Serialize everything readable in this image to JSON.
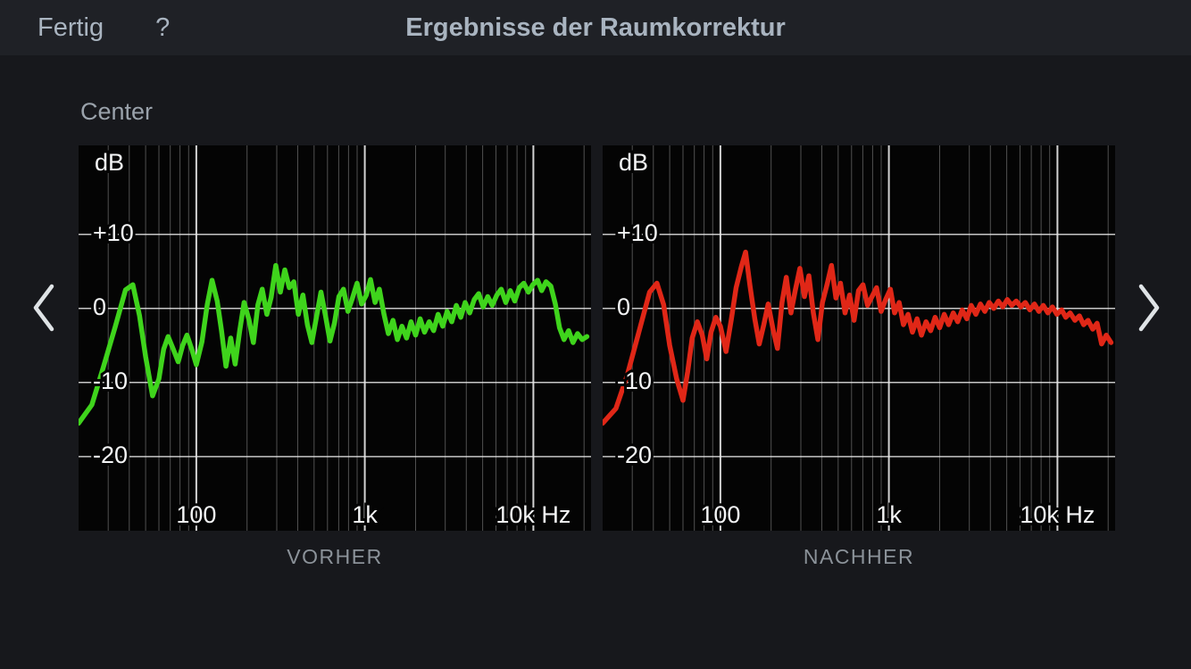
{
  "nav": {
    "done_label": "Fertig",
    "help_label": "?",
    "title": "Ergebnisse der Raumkorrektur"
  },
  "page": {
    "speaker_label": "Center"
  },
  "colors": {
    "grid_major": "#e9e9e9",
    "grid_minor": "#8f8f8f",
    "axis_text": "#f4f5f6",
    "before_curve": "#3fd41c",
    "after_curve": "#e02717"
  },
  "chart_data": [
    {
      "type": "line",
      "caption": "VORHER",
      "xlabel": "Hz",
      "ylabel": "dB",
      "x_scale": "log",
      "freq_range": [
        20,
        22000
      ],
      "db_range": [
        -30,
        22
      ],
      "x_ticks": [
        {
          "f": 100,
          "label": "100"
        },
        {
          "f": 1000,
          "label": "1k"
        },
        {
          "f": 10000,
          "label": "10k Hz"
        }
      ],
      "y_ticks": [
        {
          "db": 10,
          "label": "+10"
        },
        {
          "db": 0,
          "label": "0"
        },
        {
          "db": -10,
          "label": "-10"
        },
        {
          "db": -20,
          "label": "-20"
        }
      ],
      "y_unit_label": {
        "db": 19.5,
        "label": "dB"
      },
      "h_gridlines": [
        10,
        0,
        -10,
        -20
      ],
      "series": [
        {
          "name": "Center vorher",
          "color": "#3fd41c",
          "points": [
            [
              20,
              -15.5
            ],
            [
              24,
              -13
            ],
            [
              28,
              -8
            ],
            [
              33,
              -2.5
            ],
            [
              38,
              2.5
            ],
            [
              42,
              3.2
            ],
            [
              46,
              -1
            ],
            [
              50,
              -6.5
            ],
            [
              55,
              -11.8
            ],
            [
              60,
              -9.5
            ],
            [
              64,
              -5.5
            ],
            [
              68,
              -3.8
            ],
            [
              73,
              -5.5
            ],
            [
              78,
              -7.2
            ],
            [
              83,
              -5.0
            ],
            [
              88,
              -3.6
            ],
            [
              94,
              -5.5
            ],
            [
              100,
              -7.6
            ],
            [
              108,
              -4.5
            ],
            [
              116,
              0.5
            ],
            [
              124,
              3.8
            ],
            [
              133,
              1.0
            ],
            [
              141,
              -3.0
            ],
            [
              150,
              -7.8
            ],
            [
              160,
              -4.0
            ],
            [
              170,
              -7.5
            ],
            [
              181,
              -3.0
            ],
            [
              192,
              0.8
            ],
            [
              205,
              -1.5
            ],
            [
              218,
              -4.6
            ],
            [
              232,
              0.5
            ],
            [
              246,
              2.6
            ],
            [
              262,
              -0.8
            ],
            [
              278,
              1.5
            ],
            [
              296,
              5.8
            ],
            [
              315,
              2.2
            ],
            [
              335,
              5.2
            ],
            [
              356,
              2.8
            ],
            [
              379,
              3.6
            ],
            [
              403,
              -0.8
            ],
            [
              429,
              1.8
            ],
            [
              456,
              -2.2
            ],
            [
              485,
              -4.6
            ],
            [
              516,
              -1.2
            ],
            [
              549,
              2.2
            ],
            [
              584,
              -1.0
            ],
            [
              621,
              -4.4
            ],
            [
              660,
              -2.0
            ],
            [
              702,
              1.6
            ],
            [
              747,
              2.6
            ],
            [
              794,
              -0.4
            ],
            [
              845,
              1.4
            ],
            [
              899,
              3.4
            ],
            [
              956,
              0.6
            ],
            [
              1020,
              1.8
            ],
            [
              1080,
              3.9
            ],
            [
              1150,
              0.8
            ],
            [
              1220,
              2.6
            ],
            [
              1300,
              -0.8
            ],
            [
              1380,
              -3.4
            ],
            [
              1470,
              -1.6
            ],
            [
              1560,
              -4.2
            ],
            [
              1660,
              -2.4
            ],
            [
              1770,
              -4.0
            ],
            [
              1880,
              -1.8
            ],
            [
              2000,
              -3.6
            ],
            [
              2130,
              -1.4
            ],
            [
              2260,
              -3.2
            ],
            [
              2410,
              -1.8
            ],
            [
              2560,
              -3.0
            ],
            [
              2720,
              -0.8
            ],
            [
              2900,
              -2.4
            ],
            [
              3080,
              -0.4
            ],
            [
              3280,
              -1.8
            ],
            [
              3490,
              0.4
            ],
            [
              3710,
              -1.2
            ],
            [
              3940,
              0.8
            ],
            [
              4190,
              -0.6
            ],
            [
              4460,
              1.2
            ],
            [
              4740,
              2.0
            ],
            [
              5040,
              0.2
            ],
            [
              5360,
              1.6
            ],
            [
              5700,
              0.4
            ],
            [
              6070,
              1.8
            ],
            [
              6450,
              2.6
            ],
            [
              6860,
              0.8
            ],
            [
              7300,
              2.4
            ],
            [
              7760,
              1.0
            ],
            [
              8250,
              2.8
            ],
            [
              8780,
              3.4
            ],
            [
              9340,
              2.2
            ],
            [
              9930,
              3.2
            ],
            [
              10600,
              3.8
            ],
            [
              11200,
              2.4
            ],
            [
              11900,
              3.6
            ],
            [
              12700,
              3.0
            ],
            [
              13500,
              0.6
            ],
            [
              14300,
              -2.6
            ],
            [
              15200,
              -4.2
            ],
            [
              16200,
              -3.0
            ],
            [
              17200,
              -4.6
            ],
            [
              18300,
              -3.4
            ],
            [
              19500,
              -4.2
            ],
            [
              20800,
              -3.8
            ]
          ]
        }
      ]
    },
    {
      "type": "line",
      "caption": "NACHHER",
      "xlabel": "Hz",
      "ylabel": "dB",
      "x_scale": "log",
      "freq_range": [
        20,
        22000
      ],
      "db_range": [
        -30,
        22
      ],
      "x_ticks": [
        {
          "f": 100,
          "label": "100"
        },
        {
          "f": 1000,
          "label": "1k"
        },
        {
          "f": 10000,
          "label": "10k Hz"
        }
      ],
      "y_ticks": [
        {
          "db": 10,
          "label": "+10"
        },
        {
          "db": 0,
          "label": "0"
        },
        {
          "db": -10,
          "label": "-10"
        },
        {
          "db": -20,
          "label": "-20"
        }
      ],
      "y_unit_label": {
        "db": 19.5,
        "label": "dB"
      },
      "h_gridlines": [
        10,
        0,
        -10,
        -20
      ],
      "series": [
        {
          "name": "Center nachher",
          "color": "#e02717",
          "points": [
            [
              20,
              -15.5
            ],
            [
              24,
              -13.5
            ],
            [
              28,
              -9
            ],
            [
              33,
              -3
            ],
            [
              38,
              2.2
            ],
            [
              42,
              3.4
            ],
            [
              46,
              0.5
            ],
            [
              50,
              -5
            ],
            [
              55,
              -9.5
            ],
            [
              60,
              -12.4
            ],
            [
              64,
              -8.5
            ],
            [
              68,
              -4
            ],
            [
              73,
              -1.8
            ],
            [
              78,
              -3.6
            ],
            [
              83,
              -6.8
            ],
            [
              88,
              -3.2
            ],
            [
              94,
              -1.2
            ],
            [
              100,
              -2.4
            ],
            [
              108,
              -5.8
            ],
            [
              116,
              -1.5
            ],
            [
              124,
              2.8
            ],
            [
              133,
              5.6
            ],
            [
              141,
              7.6
            ],
            [
              150,
              3.0
            ],
            [
              160,
              -1.4
            ],
            [
              170,
              -4.8
            ],
            [
              181,
              -2.2
            ],
            [
              192,
              0.6
            ],
            [
              205,
              -2.8
            ],
            [
              218,
              -5.4
            ],
            [
              232,
              0.8
            ],
            [
              246,
              4.2
            ],
            [
              262,
              -0.6
            ],
            [
              278,
              2.4
            ],
            [
              296,
              5.4
            ],
            [
              315,
              1.6
            ],
            [
              335,
              4.4
            ],
            [
              356,
              -0.6
            ],
            [
              379,
              -4.2
            ],
            [
              403,
              0.8
            ],
            [
              429,
              3.2
            ],
            [
              456,
              5.8
            ],
            [
              485,
              1.4
            ],
            [
              516,
              3.4
            ],
            [
              549,
              -0.6
            ],
            [
              584,
              1.8
            ],
            [
              621,
              -1.6
            ],
            [
              660,
              2.4
            ],
            [
              702,
              3.2
            ],
            [
              747,
              0.4
            ],
            [
              794,
              1.6
            ],
            [
              845,
              2.8
            ],
            [
              899,
              -0.4
            ],
            [
              956,
              1.2
            ],
            [
              1020,
              2.6
            ],
            [
              1080,
              -0.6
            ],
            [
              1150,
              0.8
            ],
            [
              1220,
              -2.2
            ],
            [
              1300,
              -0.8
            ],
            [
              1380,
              -3.2
            ],
            [
              1470,
              -1.4
            ],
            [
              1560,
              -3.6
            ],
            [
              1660,
              -1.8
            ],
            [
              1770,
              -3.0
            ],
            [
              1880,
              -1.2
            ],
            [
              2000,
              -2.6
            ],
            [
              2130,
              -0.8
            ],
            [
              2260,
              -2.2
            ],
            [
              2410,
              -0.6
            ],
            [
              2560,
              -1.8
            ],
            [
              2720,
              -0.2
            ],
            [
              2900,
              -1.4
            ],
            [
              3080,
              0.4
            ],
            [
              3280,
              -0.8
            ],
            [
              3490,
              0.6
            ],
            [
              3710,
              -0.4
            ],
            [
              3940,
              0.8
            ],
            [
              4190,
              0.0
            ],
            [
              4460,
              1.0
            ],
            [
              4740,
              0.2
            ],
            [
              5040,
              1.2
            ],
            [
              5360,
              0.4
            ],
            [
              5700,
              1.0
            ],
            [
              6070,
              0.2
            ],
            [
              6450,
              0.8
            ],
            [
              6860,
              -0.2
            ],
            [
              7300,
              0.6
            ],
            [
              7760,
              -0.4
            ],
            [
              8250,
              0.4
            ],
            [
              8780,
              -0.6
            ],
            [
              9340,
              0.2
            ],
            [
              9930,
              -0.8
            ],
            [
              10600,
              -0.2
            ],
            [
              11200,
              -1.2
            ],
            [
              11900,
              -0.6
            ],
            [
              12700,
              -1.6
            ],
            [
              13500,
              -1.0
            ],
            [
              14300,
              -2.2
            ],
            [
              15200,
              -1.6
            ],
            [
              16200,
              -2.8
            ],
            [
              17200,
              -2.0
            ],
            [
              18300,
              -4.8
            ],
            [
              19500,
              -3.6
            ],
            [
              20800,
              -4.6
            ]
          ]
        }
      ]
    }
  ]
}
